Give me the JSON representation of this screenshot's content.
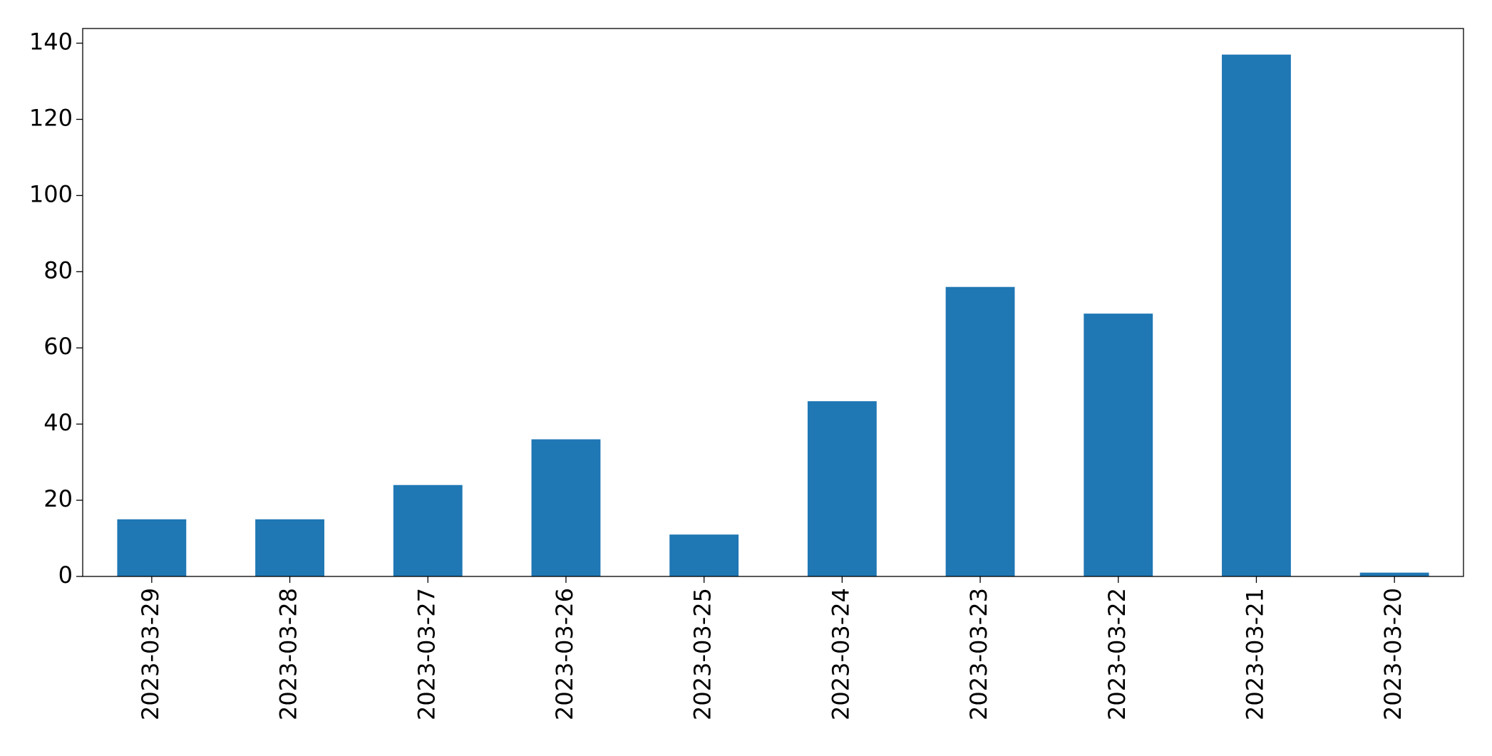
{
  "chart_data": {
    "type": "bar",
    "categories": [
      "2023-03-29",
      "2023-03-28",
      "2023-03-27",
      "2023-03-26",
      "2023-03-25",
      "2023-03-24",
      "2023-03-23",
      "2023-03-22",
      "2023-03-21",
      "2023-03-20"
    ],
    "values": [
      15,
      15,
      24,
      36,
      11,
      46,
      76,
      69,
      137,
      1
    ],
    "color": "#1f77b4",
    "ylim": [
      0,
      143.85
    ],
    "yticks": [
      0,
      20,
      40,
      60,
      80,
      100,
      120,
      140
    ],
    "grid": false
  }
}
